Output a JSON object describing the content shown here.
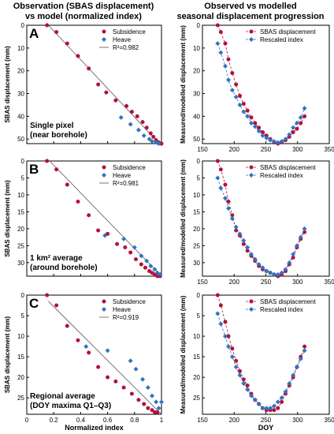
{
  "column_titles": {
    "left": "Observation (SBAS displacement)\nvs model (normalized index)",
    "right": "Observed vs modelled\nseasonal displacement progression"
  },
  "colors": {
    "subsidence": "#b5103a",
    "heave": "#2f74c0",
    "fit": "#555555",
    "axis": "#000000"
  },
  "chart_data": [
    {
      "panel": "A",
      "type": "scatter",
      "xlabel": "",
      "ylabel": "SBAS displacement (mm)",
      "xlim": [
        0,
        1
      ],
      "ylim": [
        52,
        0
      ],
      "yticks": [
        0,
        10,
        20,
        30,
        40,
        50
      ],
      "xticks": [
        0,
        0.2,
        0.4,
        0.6,
        0.8,
        1
      ],
      "tick_labels_x": [
        "0",
        "0.2",
        "0.4",
        "0.6",
        "0.8",
        "1"
      ],
      "show_xtick_labels": false,
      "annotation": "Single pixel\n(near borehole)",
      "legend": [
        {
          "name": "Subsidence",
          "kind": "subsidence"
        },
        {
          "name": "Heave",
          "kind": "heave"
        },
        {
          "name": "R²=0.982",
          "kind": "fit"
        }
      ],
      "fit": {
        "x": [
          0.16,
          1.0
        ],
        "y": [
          0,
          53
        ]
      },
      "series": [
        {
          "name": "Subsidence",
          "kind": "subsidence",
          "x": [
            0.15,
            0.22,
            0.3,
            0.38,
            0.46,
            0.53,
            0.59,
            0.66,
            0.74,
            0.78,
            0.82,
            0.86,
            0.89,
            0.92,
            0.94,
            0.96,
            0.98,
            1.0
          ],
          "y": [
            0,
            3,
            8,
            13.5,
            19,
            26,
            29.5,
            33,
            35.5,
            38,
            40,
            42.5,
            45,
            47.5,
            49,
            50.5,
            51.5,
            52
          ]
        },
        {
          "name": "Heave",
          "kind": "heave",
          "x": [
            0.7,
            0.77,
            0.83,
            0.87,
            0.91,
            0.93,
            0.96,
            0.98
          ],
          "y": [
            40.5,
            43.5,
            46,
            48.5,
            50,
            51,
            51.5,
            52
          ]
        }
      ]
    },
    {
      "panel": "A2",
      "type": "line",
      "xlabel": "",
      "ylabel": "Measured/modelled displacement (mm)",
      "xlim": [
        150,
        350
      ],
      "ylim": [
        52,
        0
      ],
      "yticks": [
        0,
        10,
        20,
        30,
        40,
        50
      ],
      "xticks": [
        150,
        200,
        250,
        300,
        350
      ],
      "show_xtick_labels": true,
      "legend": [
        {
          "name": "SBAS displacement",
          "kind": "subsidence"
        },
        {
          "name": "Rescaled index",
          "kind": "heave"
        }
      ],
      "series": [
        {
          "name": "SBAS displacement",
          "kind": "subsidence",
          "x": [
            174,
            179,
            186,
            191,
            197,
            203,
            209,
            215,
            221,
            227,
            233,
            239,
            245,
            251,
            257,
            263,
            269,
            275,
            281,
            287,
            293,
            299,
            305,
            311
          ],
          "y": [
            0,
            3,
            8,
            15,
            21,
            26,
            31,
            34.5,
            37.5,
            40.5,
            43,
            45,
            47,
            48.5,
            50,
            51.5,
            52,
            51.5,
            50.5,
            49,
            47,
            45.5,
            43,
            40
          ]
        },
        {
          "name": "Rescaled index",
          "kind": "heave",
          "x": [
            174,
            179,
            186,
            191,
            197,
            203,
            209,
            215,
            221,
            227,
            233,
            239,
            245,
            251,
            257,
            263,
            269,
            275,
            281,
            287,
            293,
            299,
            305,
            311
          ],
          "y": [
            8,
            12,
            18,
            24,
            28.5,
            31.5,
            35,
            38,
            40,
            43,
            44.5,
            46.5,
            48.5,
            49.5,
            50.5,
            51,
            51.5,
            51,
            50,
            48,
            45,
            43,
            40.5,
            36.5
          ]
        }
      ]
    },
    {
      "panel": "B",
      "type": "scatter",
      "xlabel": "",
      "ylabel": "SBAS displacement (mm)",
      "xlim": [
        0,
        1
      ],
      "ylim": [
        34,
        0
      ],
      "yticks": [
        0,
        5,
        10,
        15,
        20,
        25,
        30
      ],
      "xticks": [
        0,
        0.2,
        0.4,
        0.6,
        0.8,
        1
      ],
      "tick_labels_x": [
        "0",
        "0.2",
        "0.4",
        "0.6",
        "0.8",
        "1"
      ],
      "show_xtick_labels": false,
      "annotation": "1 km² average\n(around borehole)",
      "legend": [
        {
          "name": "Subsidence",
          "kind": "subsidence"
        },
        {
          "name": "Heave",
          "kind": "heave"
        },
        {
          "name": "R²=0.981",
          "kind": "fit"
        }
      ],
      "fit": {
        "x": [
          0.17,
          1.0
        ],
        "y": [
          0,
          34
        ]
      },
      "series": [
        {
          "name": "Subsidence",
          "kind": "subsidence",
          "x": [
            0.15,
            0.22,
            0.3,
            0.38,
            0.46,
            0.53,
            0.6,
            0.67,
            0.73,
            0.77,
            0.81,
            0.85,
            0.88,
            0.91,
            0.93,
            0.95,
            0.97,
            0.99
          ],
          "y": [
            0,
            2.5,
            7,
            12,
            16,
            20.5,
            21.5,
            24.5,
            25.5,
            27,
            29,
            30.5,
            31.5,
            32.5,
            33,
            33.5,
            34,
            34
          ]
        },
        {
          "name": "Heave",
          "kind": "heave",
          "x": [
            0.58,
            0.72,
            0.8,
            0.85,
            0.89,
            0.92,
            0.95,
            0.97,
            0.99
          ],
          "y": [
            22,
            23,
            25.5,
            28,
            29.5,
            31,
            32,
            33,
            33.5
          ]
        }
      ]
    },
    {
      "panel": "B2",
      "type": "line",
      "xlabel": "",
      "ylabel": "Measured/modelled displacement (mm)",
      "xlim": [
        150,
        350
      ],
      "ylim": [
        34,
        0
      ],
      "yticks": [
        0,
        5,
        10,
        15,
        20,
        25,
        30
      ],
      "xticks": [
        150,
        200,
        250,
        300,
        350
      ],
      "show_xtick_labels": true,
      "legend": [
        {
          "name": "SBAS displacement",
          "kind": "subsidence"
        },
        {
          "name": "Rescaled index",
          "kind": "heave"
        }
      ],
      "series": [
        {
          "name": "SBAS displacement",
          "kind": "subsidence",
          "x": [
            174,
            179,
            186,
            191,
            197,
            203,
            209,
            215,
            221,
            227,
            233,
            239,
            245,
            251,
            257,
            263,
            269,
            275,
            281,
            287,
            293,
            299,
            305,
            311
          ],
          "y": [
            0,
            2.5,
            7,
            12,
            16,
            20.5,
            22,
            24.5,
            26.5,
            28,
            29.5,
            31,
            32,
            32.5,
            33,
            33.5,
            34,
            33.5,
            32.5,
            30.5,
            28.5,
            25.5,
            23,
            21
          ]
        },
        {
          "name": "Rescaled index",
          "kind": "heave",
          "x": [
            174,
            179,
            186,
            191,
            197,
            203,
            209,
            215,
            221,
            227,
            233,
            239,
            245,
            251,
            257,
            263,
            269,
            275,
            281,
            287,
            293,
            299,
            305,
            311
          ],
          "y": [
            5,
            8,
            11,
            14,
            17,
            19.5,
            21.5,
            23.5,
            25.5,
            27.5,
            29,
            30.5,
            31.5,
            32.5,
            33,
            33.5,
            33.5,
            33,
            32,
            30,
            27.5,
            25,
            22.5,
            20
          ]
        }
      ]
    },
    {
      "panel": "C",
      "type": "scatter",
      "xlabel": "Normalized index",
      "ylabel": "SBAS displacement (mm)",
      "xlim": [
        0,
        1
      ],
      "ylim": [
        29,
        0
      ],
      "yticks": [
        0,
        5,
        10,
        15,
        20,
        25
      ],
      "xticks": [
        0,
        0.2,
        0.4,
        0.6,
        0.8,
        1
      ],
      "tick_labels_x": [
        "0",
        "0.2",
        "0.4",
        "0.6",
        "0.8",
        "1"
      ],
      "show_xtick_labels": true,
      "annotation": "Regional average\n(DOY maxima Q1–Q3)",
      "legend": [
        {
          "name": "Subsidence",
          "kind": "subsidence"
        },
        {
          "name": "Heave",
          "kind": "heave"
        },
        {
          "name": "R²=0.919",
          "kind": "fit"
        }
      ],
      "fit": {
        "x": [
          0.16,
          1.0
        ],
        "y": [
          1.5,
          29
        ]
      },
      "series": [
        {
          "name": "Subsidence",
          "kind": "subsidence",
          "x": [
            0.15,
            0.22,
            0.3,
            0.38,
            0.46,
            0.53,
            0.6,
            0.66,
            0.72,
            0.78,
            0.83,
            0.87,
            0.9,
            0.93,
            0.95,
            0.97
          ],
          "y": [
            0,
            2.5,
            7.5,
            11,
            14,
            17.5,
            20,
            21,
            22.5,
            24,
            25.5,
            26.5,
            27.5,
            28,
            28.5,
            28.5
          ]
        },
        {
          "name": "Heave",
          "kind": "heave",
          "x": [
            0.44,
            0.6,
            0.77,
            0.81,
            0.86,
            0.9,
            0.93,
            0.96,
            0.98,
            1.0
          ],
          "y": [
            12.5,
            13.5,
            16,
            18,
            20.5,
            22.5,
            24.5,
            26,
            27.5,
            26
          ]
        }
      ]
    },
    {
      "panel": "C2",
      "type": "line",
      "xlabel": "DOY",
      "ylabel": "Measured/modelled displacement (mm)",
      "xlim": [
        150,
        350
      ],
      "ylim": [
        29,
        0
      ],
      "yticks": [
        0,
        5,
        10,
        15,
        20,
        25
      ],
      "xticks": [
        150,
        200,
        250,
        300,
        350
      ],
      "show_xtick_labels": true,
      "legend": [
        {
          "name": "SBAS displacement",
          "kind": "subsidence"
        },
        {
          "name": "Rescaled index",
          "kind": "heave"
        }
      ],
      "series": [
        {
          "name": "SBAS displacement",
          "kind": "subsidence",
          "x": [
            174,
            179,
            186,
            191,
            197,
            203,
            209,
            215,
            221,
            227,
            233,
            239,
            245,
            251,
            257,
            263,
            269,
            275,
            281,
            287,
            293,
            299,
            305,
            311
          ],
          "y": [
            0,
            2.5,
            6.5,
            10,
            13,
            16,
            18.5,
            20.5,
            22,
            24,
            25.5,
            26.5,
            27.5,
            28,
            28,
            28,
            27.5,
            26,
            24,
            22,
            20,
            17.5,
            15,
            12.5
          ]
        },
        {
          "name": "Rescaled index",
          "kind": "heave",
          "x": [
            174,
            179,
            186,
            191,
            197,
            203,
            209,
            215,
            221,
            227,
            233,
            239,
            245,
            251,
            257,
            263,
            269,
            275,
            281,
            287,
            293,
            299,
            305,
            311
          ],
          "y": [
            4.5,
            7,
            10,
            12.5,
            15,
            17.5,
            19.5,
            21.5,
            23,
            24.5,
            25.5,
            26.5,
            27.5,
            27.5,
            27.5,
            27,
            26,
            25,
            23.5,
            21.5,
            19.5,
            17.5,
            15.5,
            13.5
          ]
        }
      ]
    }
  ]
}
